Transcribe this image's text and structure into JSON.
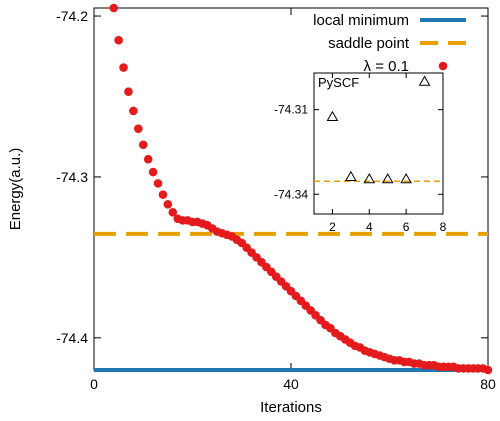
{
  "chart_data": [
    {
      "type": "scatter",
      "xlabel": "Iterations",
      "ylabel": "Energy(a.u.)",
      "xlim": [
        0,
        80
      ],
      "ylim": [
        -74.42,
        -74.195
      ],
      "xticks": [
        "0",
        "40",
        "80"
      ],
      "yticks": [
        "-74.2",
        "-74.3",
        "-74.4"
      ],
      "ytick_values": [
        -74.2,
        -74.3,
        -74.4
      ],
      "grid": false,
      "legend_position": "top-right",
      "series": [
        {
          "name": "local minimum",
          "kind": "hline",
          "y": -74.42,
          "color": "#1f77b4"
        },
        {
          "name": "saddle point",
          "kind": "hline",
          "style": "dashed",
          "y": -74.3354,
          "color": "#e8a000"
        },
        {
          "name": "λ = 0.1",
          "kind": "points",
          "color": "#e41a1c",
          "x": [
            4,
            5,
            6,
            7,
            8,
            9,
            10,
            11,
            12,
            13,
            14,
            15,
            16,
            17,
            18,
            19,
            20,
            21,
            22,
            23,
            24,
            25,
            26,
            27,
            28,
            29,
            30,
            31,
            32,
            33,
            34,
            35,
            36,
            37,
            38,
            39,
            40,
            41,
            42,
            43,
            44,
            45,
            46,
            47,
            48,
            49,
            50,
            51,
            52,
            53,
            54,
            55,
            56,
            57,
            58,
            59,
            60,
            61,
            62,
            63,
            64,
            65,
            66,
            67,
            68,
            69,
            70,
            71,
            72,
            73,
            74,
            75,
            76,
            77,
            78,
            79,
            80
          ],
          "y": [
            -74.195,
            -74.215,
            -74.232,
            -74.247,
            -74.259,
            -74.27,
            -74.28,
            -74.289,
            -74.297,
            -74.304,
            -74.311,
            -74.317,
            -74.322,
            -74.326,
            -74.327,
            -74.327,
            -74.328,
            -74.328,
            -74.329,
            -74.33,
            -74.332,
            -74.334,
            -74.335,
            -74.336,
            -74.337,
            -74.339,
            -74.341,
            -74.344,
            -74.347,
            -74.35,
            -74.353,
            -74.356,
            -74.359,
            -74.362,
            -74.365,
            -74.368,
            -74.371,
            -74.374,
            -74.377,
            -74.38,
            -74.383,
            -74.386,
            -74.389,
            -74.392,
            -74.394,
            -74.397,
            -74.399,
            -74.401,
            -74.403,
            -74.405,
            -74.406,
            -74.408,
            -74.409,
            -74.41,
            -74.411,
            -74.412,
            -74.413,
            -74.414,
            -74.414,
            -74.415,
            -74.415,
            -74.416,
            -74.416,
            -74.417,
            -74.417,
            -74.417,
            -74.418,
            -74.418,
            -74.418,
            -74.418,
            -74.419,
            -74.419,
            -74.419,
            -74.419,
            -74.419,
            -74.419,
            -74.42
          ]
        }
      ]
    },
    {
      "type": "scatter",
      "title": "PySCF",
      "xlim": [
        1,
        8
      ],
      "ylim": [
        -74.347,
        -74.297
      ],
      "xticks": [
        "2",
        "4",
        "6",
        "8"
      ],
      "xtick_values": [
        2,
        4,
        6,
        8
      ],
      "yticks": [
        "-74.31",
        "-74.34"
      ],
      "ytick_values": [
        -74.31,
        -74.34
      ],
      "series": [
        {
          "kind": "hline",
          "style": "dashed",
          "y": -74.3354,
          "color": "#e8a000"
        },
        {
          "kind": "points",
          "marker": "open-triangle",
          "x": [
            2,
            3,
            4,
            5,
            6,
            7
          ],
          "y": [
            -74.3125,
            -74.3338,
            -74.3346,
            -74.3346,
            -74.3346,
            -74.3
          ]
        }
      ]
    }
  ]
}
